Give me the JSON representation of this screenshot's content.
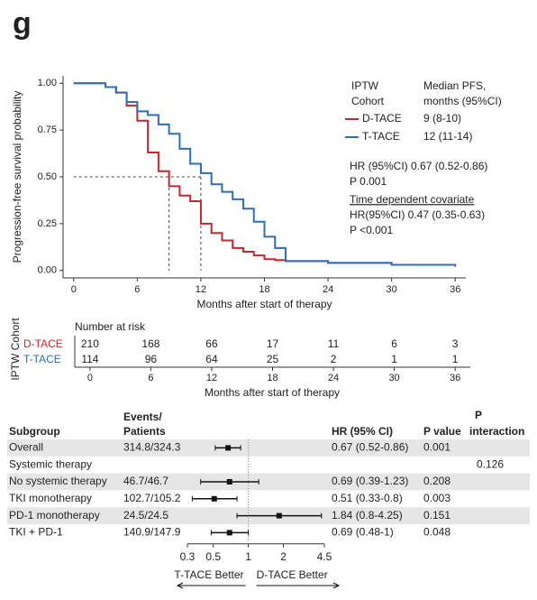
{
  "panel_label": "g",
  "chart_data": [
    {
      "type": "step",
      "ylabel": "Progression-free survival probability",
      "xlabel": "Months after start of therapy",
      "xlim": [
        -1,
        37
      ],
      "xticks": [
        0,
        6,
        12,
        18,
        24,
        30,
        36
      ],
      "ylim": [
        -0.04,
        1.04
      ],
      "yticks": [
        {
          "value": 0,
          "label": "0.00"
        },
        {
          "value": 0.25,
          "label": "0.25"
        },
        {
          "value": 0.5,
          "label": "0.50"
        },
        {
          "value": 0.75,
          "label": "0.75"
        },
        {
          "value": 1,
          "label": "1.00"
        }
      ],
      "legend_title": [
        "IPTW",
        "Cohort"
      ],
      "median_title": [
        "Median PFS,",
        "months (95%CI)"
      ],
      "median_y": 0.5,
      "x": [
        0,
        3,
        4,
        5,
        6,
        7,
        8,
        9,
        10,
        11,
        12,
        13,
        14,
        15,
        16,
        17,
        18,
        19,
        20,
        24,
        30,
        36
      ],
      "series": [
        {
          "name": "D-TACE",
          "color": "#c8262c",
          "median": 9,
          "median_label": "9 (8-10)",
          "values": [
            1,
            0.98,
            0.95,
            0.88,
            0.8,
            0.63,
            0.53,
            0.45,
            0.4,
            0.37,
            0.25,
            0.2,
            0.16,
            0.12,
            0.1,
            0.08,
            0.06,
            0.055,
            0.05,
            0.04,
            0.03,
            0.02
          ]
        },
        {
          "name": "T-TACE",
          "color": "#2f6db5",
          "median": 12,
          "median_label": "12 (11-14)",
          "values": [
            1,
            0.98,
            0.95,
            0.9,
            0.85,
            0.83,
            0.78,
            0.73,
            0.65,
            0.57,
            0.52,
            0.46,
            0.42,
            0.38,
            0.33,
            0.26,
            0.18,
            0.12,
            0.05,
            0.04,
            0.03,
            0.03
          ]
        }
      ],
      "annotations": [
        "HR (95%CI) 0.67 (0.52-0.86)",
        "P 0.001",
        "Time dependent covariate",
        "HR(95%CI) 0.47 (0.35-0.63)",
        "P <0.001"
      ]
    },
    {
      "type": "risk_table",
      "title": "Number at risk",
      "ylabel": "IPTW Cohort",
      "xlabel": "Months after start of therapy",
      "xlim": [
        -1.5,
        37.5
      ],
      "x": [
        0,
        6,
        12,
        18,
        24,
        30,
        36
      ],
      "xticks": [
        0,
        6,
        12,
        18,
        24,
        30,
        36
      ],
      "rows": [
        {
          "name": "D-TACE",
          "color": "#c8262c",
          "values": [
            210,
            168,
            66,
            17,
            11,
            6,
            3
          ]
        },
        {
          "name": "T-TACE",
          "color": "#2f6db5",
          "values": [
            114,
            96,
            64,
            25,
            2,
            1,
            1
          ]
        }
      ]
    },
    {
      "type": "forest",
      "log_x": true,
      "xlim": [
        0.3,
        4.5
      ],
      "xticks": [
        0.3,
        0.5,
        1,
        2,
        4.5
      ],
      "reference": 1,
      "columns": {
        "subgroup": "Subgroup",
        "events": [
          "Events/",
          "Patients"
        ],
        "hr": "HR (95% CI)",
        "p": "P value",
        "p_interaction": [
          "P",
          "interaction"
        ]
      },
      "left_label": "T-TACE Better",
      "right_label": "D-TACE Better",
      "rows": [
        {
          "subgroup": "Overall",
          "events": "314.8/324.3",
          "hr": 0.67,
          "lo": 0.52,
          "hi": 0.86,
          "hr_label": "0.67 (0.52-0.86)",
          "p": 0.001
        },
        {
          "subgroup": "Systemic therapy",
          "p_interaction": 0.126
        },
        {
          "subgroup": "No systemic therapy",
          "events": "46.7/46.7",
          "hr": 0.69,
          "lo": 0.39,
          "hi": 1.23,
          "hr_label": "0.69 (0.39-1.23)",
          "p": 0.208
        },
        {
          "subgroup": "TKI monotherapy",
          "events": "102.7/105.2",
          "hr": 0.51,
          "lo": 0.33,
          "hi": 0.8,
          "hr_label": "0.51 (0.33-0.8)",
          "p": 0.003
        },
        {
          "subgroup": "PD-1 monotherapy",
          "events": "24.5/24.5",
          "hr": 1.84,
          "lo": 0.8,
          "hi": 4.25,
          "hr_label": "1.84 (0.8-4.25)",
          "p": 0.151
        },
        {
          "subgroup": "TKI + PD-1",
          "events": "140.9/147.9",
          "hr": 0.69,
          "lo": 0.48,
          "hi": 1,
          "hr_label": "0.69 (0.48-1)",
          "p": 0.048
        }
      ]
    }
  ]
}
